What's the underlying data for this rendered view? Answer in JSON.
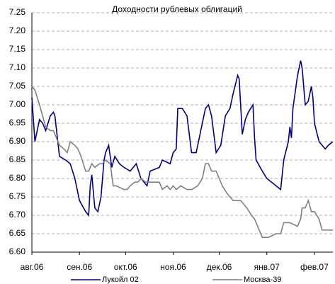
{
  "chart_data": {
    "type": "line",
    "title": "Доходности рублевых облигаций",
    "xlim": [
      0,
      196
    ],
    "xticks": [
      {
        "value": 0,
        "label": "авг.06"
      },
      {
        "value": 31,
        "label": "сен.06"
      },
      {
        "value": 61,
        "label": "окт.06"
      },
      {
        "value": 92,
        "label": "ноя.06"
      },
      {
        "value": 122,
        "label": "дек.06"
      },
      {
        "value": 153,
        "label": "янв.07"
      },
      {
        "value": 184,
        "label": "фев.07"
      }
    ],
    "ylim": [
      6.6,
      7.25
    ],
    "yticks": [
      {
        "value": 6.6,
        "label": "6.60"
      },
      {
        "value": 6.65,
        "label": "6.65"
      },
      {
        "value": 6.7,
        "label": "6.70"
      },
      {
        "value": 6.75,
        "label": "6.75"
      },
      {
        "value": 6.8,
        "label": "6.80"
      },
      {
        "value": 6.85,
        "label": "6.85"
      },
      {
        "value": 6.9,
        "label": "6.90"
      },
      {
        "value": 6.95,
        "label": "6.95"
      },
      {
        "value": 7.0,
        "label": "7.00"
      },
      {
        "value": 7.05,
        "label": "7.05"
      },
      {
        "value": 7.1,
        "label": "7.10"
      },
      {
        "value": 7.15,
        "label": "7.15"
      },
      {
        "value": 7.2,
        "label": "7.20"
      },
      {
        "value": 7.25,
        "label": "7.25"
      }
    ],
    "grid": true,
    "series": [
      {
        "name": "Лукойл 02",
        "color": "#000080",
        "x": [
          0,
          2,
          5,
          7,
          9,
          12,
          14,
          15,
          18,
          22,
          25,
          28,
          31,
          35,
          37,
          38,
          39,
          41,
          43,
          45,
          47,
          48,
          50,
          52,
          54,
          57,
          60,
          64,
          68,
          71,
          75,
          77,
          83,
          85,
          90,
          92,
          94,
          95,
          98,
          101,
          104,
          107,
          110,
          113,
          115,
          117,
          120,
          123,
          126,
          129,
          131,
          134,
          135,
          137,
          139,
          141,
          144,
          145,
          146,
          150,
          153,
          159,
          162,
          164,
          167,
          168,
          169,
          170,
          173,
          175,
          176,
          178,
          180,
          182,
          183,
          184,
          187,
          191,
          193,
          196
        ],
        "values": [
          7.02,
          6.9,
          6.96,
          6.95,
          6.93,
          6.97,
          6.98,
          6.97,
          6.86,
          6.85,
          6.84,
          6.8,
          6.74,
          6.71,
          6.7,
          6.78,
          6.81,
          6.72,
          6.71,
          6.75,
          6.85,
          6.87,
          6.89,
          6.83,
          6.86,
          6.84,
          6.83,
          6.82,
          6.84,
          6.8,
          6.78,
          6.82,
          6.83,
          6.85,
          6.84,
          6.87,
          6.88,
          6.99,
          6.99,
          6.97,
          6.87,
          6.87,
          6.93,
          6.99,
          7.0,
          6.97,
          6.87,
          6.89,
          6.97,
          6.99,
          7.03,
          7.08,
          7.07,
          6.92,
          6.96,
          6.98,
          7.0,
          6.91,
          6.85,
          6.82,
          6.8,
          6.78,
          6.77,
          6.85,
          6.9,
          6.94,
          6.91,
          6.99,
          7.08,
          7.12,
          7.1,
          7.0,
          7.01,
          7.05,
          7.02,
          6.95,
          6.9,
          6.88,
          6.89,
          6.9
        ]
      },
      {
        "name": "Москва-39",
        "color": "#808080",
        "x": [
          0,
          2,
          5,
          7,
          9,
          12,
          14,
          16,
          18,
          21,
          23,
          25,
          28,
          30,
          32,
          35,
          37,
          39,
          41,
          44,
          46,
          48,
          51,
          53,
          55,
          60,
          62,
          64,
          67,
          69,
          71,
          74,
          76,
          81,
          83,
          85,
          88,
          90,
          92,
          94,
          97,
          101,
          104,
          108,
          111,
          113,
          115,
          117,
          120,
          122,
          124,
          127,
          131,
          136,
          138,
          140,
          143,
          145,
          147,
          150,
          154,
          159,
          162,
          164,
          168,
          173,
          175,
          176,
          178,
          180,
          182,
          184,
          187,
          189,
          192,
          196
        ],
        "values": [
          7.05,
          7.04,
          7.0,
          6.97,
          6.94,
          6.93,
          6.93,
          6.91,
          6.89,
          6.88,
          6.87,
          6.9,
          6.89,
          6.88,
          6.86,
          6.82,
          6.82,
          6.84,
          6.83,
          6.84,
          6.84,
          6.85,
          6.84,
          6.78,
          6.78,
          6.77,
          6.77,
          6.78,
          6.79,
          6.79,
          6.8,
          6.79,
          6.79,
          6.79,
          6.79,
          6.77,
          6.78,
          6.77,
          6.78,
          6.77,
          6.78,
          6.77,
          6.77,
          6.78,
          6.8,
          6.84,
          6.84,
          6.82,
          6.82,
          6.8,
          6.78,
          6.76,
          6.74,
          6.74,
          6.73,
          6.72,
          6.7,
          6.69,
          6.67,
          6.64,
          6.64,
          6.65,
          6.65,
          6.68,
          6.68,
          6.67,
          6.69,
          6.72,
          6.72,
          6.74,
          6.71,
          6.71,
          6.69,
          6.66,
          6.66,
          6.66
        ]
      }
    ]
  }
}
